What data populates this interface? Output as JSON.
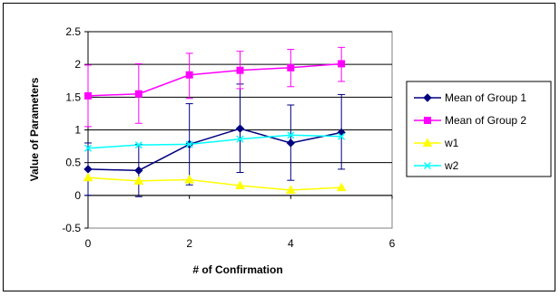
{
  "chart_data": {
    "type": "line",
    "title": "",
    "xlabel": "# of Confirmation",
    "ylabel": "Value of Parameters",
    "xlim": [
      0,
      6
    ],
    "ylim": [
      -0.5,
      2.5
    ],
    "x_ticks": [
      0,
      2,
      4,
      6
    ],
    "y_ticks": [
      -0.5,
      0,
      0.5,
      1,
      1.5,
      2,
      2.5
    ],
    "grid": "horizontal",
    "legend_position": "right",
    "x": [
      0,
      1,
      2,
      3,
      4,
      5
    ],
    "series": [
      {
        "name": "Mean of Group 1",
        "color": "#000080",
        "marker": "diamond",
        "values": [
          0.4,
          0.38,
          0.78,
          1.02,
          0.8,
          0.96
        ],
        "error_low": [
          0.4,
          0.4,
          0.62,
          0.67,
          0.57,
          0.56
        ],
        "error_high": [
          0.4,
          0.4,
          0.62,
          0.68,
          0.58,
          0.58
        ]
      },
      {
        "name": "Mean of Group 2",
        "color": "#ff00ff",
        "marker": "square",
        "values": [
          1.52,
          1.55,
          1.84,
          1.91,
          1.95,
          2.01
        ],
        "error_low": [
          0.47,
          0.45,
          0.36,
          0.28,
          0.29,
          0.27
        ],
        "error_high": [
          0.47,
          0.46,
          0.33,
          0.29,
          0.28,
          0.25
        ]
      },
      {
        "name": "w1",
        "color": "#ffff00",
        "marker": "triangle",
        "values": [
          0.27,
          0.22,
          0.24,
          0.15,
          0.08,
          0.12
        ]
      },
      {
        "name": "w2",
        "color": "#00ffff",
        "marker": "x",
        "values": [
          0.72,
          0.77,
          0.78,
          0.86,
          0.92,
          0.9
        ]
      }
    ]
  }
}
